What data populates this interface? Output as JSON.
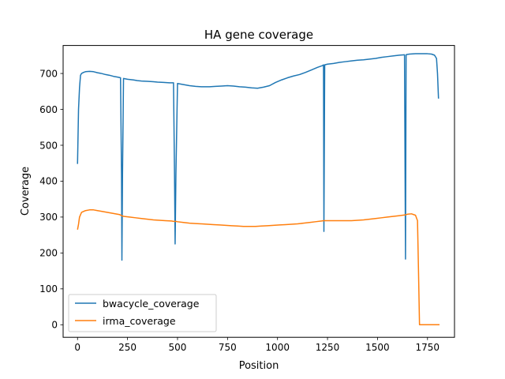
{
  "chart_data": {
    "type": "line",
    "title": "HA gene coverage",
    "xlabel": "Position",
    "ylabel": "Coverage",
    "xlim": [
      -72,
      1885
    ],
    "ylim": [
      -35,
      778
    ],
    "xticks": [
      0,
      250,
      500,
      750,
      1000,
      1250,
      1500,
      1750
    ],
    "yticks": [
      0,
      100,
      200,
      300,
      400,
      500,
      600,
      700
    ],
    "grid": false,
    "legend": "lower-left",
    "series": [
      {
        "name": "bwacycle_coverage",
        "color": "#1f77b4",
        "x": [
          0,
          5,
          10,
          15,
          20,
          30,
          40,
          60,
          80,
          100,
          120,
          140,
          160,
          180,
          200,
          215,
          220,
          222,
          225,
          230,
          250,
          280,
          300,
          320,
          350,
          380,
          400,
          430,
          460,
          480,
          485,
          488,
          492,
          500,
          530,
          560,
          590,
          620,
          640,
          660,
          690,
          720,
          750,
          780,
          810,
          840,
          870,
          900,
          930,
          960,
          990,
          1020,
          1050,
          1080,
          1110,
          1140,
          1170,
          1200,
          1225,
          1230,
          1232,
          1236,
          1250,
          1280,
          1310,
          1340,
          1370,
          1400,
          1430,
          1460,
          1490,
          1520,
          1550,
          1580,
          1610,
          1635,
          1640,
          1643,
          1647,
          1660,
          1690,
          1720,
          1750,
          1770,
          1785,
          1795,
          1800,
          1805
        ],
        "y": [
          448,
          600,
          660,
          695,
          700,
          703,
          705,
          706,
          705,
          702,
          700,
          697,
          695,
          692,
          690,
          688,
          420,
          180,
          420,
          686,
          684,
          682,
          680,
          679,
          678,
          677,
          676,
          675,
          674,
          674,
          420,
          225,
          420,
          672,
          669,
          666,
          664,
          663,
          663,
          663,
          664,
          665,
          666,
          665,
          663,
          662,
          660,
          659,
          662,
          666,
          675,
          682,
          688,
          693,
          697,
          703,
          710,
          717,
          722,
          724,
          260,
          724,
          726,
          728,
          731,
          733,
          735,
          737,
          738,
          740,
          742,
          745,
          747,
          749,
          751,
          752,
          183,
          752,
          753,
          754,
          755,
          755,
          755,
          754,
          751,
          742,
          700,
          630
        ]
      },
      {
        "name": "irma_coverage",
        "color": "#ff7f0e",
        "x": [
          0,
          5,
          10,
          20,
          40,
          60,
          80,
          100,
          120,
          150,
          180,
          210,
          220,
          230,
          260,
          290,
          320,
          350,
          380,
          410,
          440,
          470,
          480,
          485,
          488,
          492,
          500,
          530,
          560,
          590,
          620,
          650,
          680,
          710,
          740,
          770,
          800,
          830,
          860,
          890,
          920,
          950,
          980,
          1010,
          1040,
          1070,
          1100,
          1130,
          1160,
          1190,
          1220,
          1230,
          1232,
          1236,
          1250,
          1280,
          1310,
          1340,
          1370,
          1400,
          1430,
          1460,
          1490,
          1520,
          1550,
          1580,
          1610,
          1640,
          1645,
          1650,
          1670,
          1690,
          1700,
          1705,
          1710,
          1750,
          1800,
          1810
        ],
        "y": [
          265,
          280,
          300,
          313,
          318,
          320,
          320,
          318,
          316,
          313,
          310,
          307,
          304,
          302,
          300,
          298,
          296,
          294,
          292,
          291,
          290,
          289,
          288,
          288,
          288,
          288,
          287,
          285,
          283,
          282,
          281,
          280,
          279,
          278,
          277,
          276,
          275,
          274,
          274,
          274,
          275,
          276,
          277,
          278,
          279,
          280,
          281,
          283,
          285,
          287,
          289,
          290,
          290,
          290,
          290,
          290,
          290,
          290,
          290,
          291,
          292,
          294,
          296,
          298,
          300,
          302,
          304,
          306,
          307,
          308,
          309,
          305,
          290,
          150,
          0,
          0,
          0,
          0
        ]
      }
    ]
  }
}
